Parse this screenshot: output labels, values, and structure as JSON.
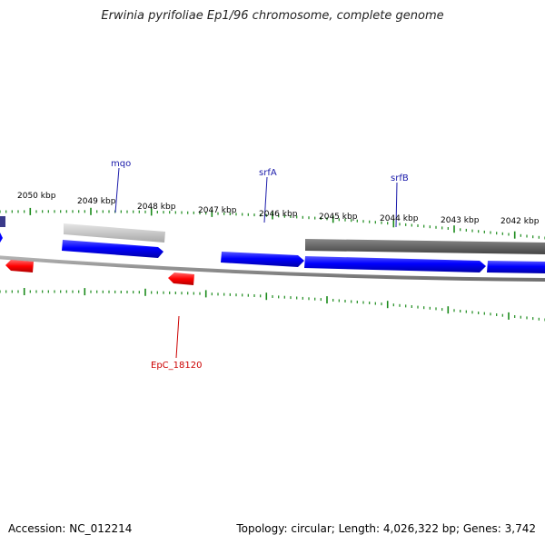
{
  "title": "Erwinia pyrifoliae Ep1/96 chromosome, complete genome",
  "footer": {
    "accession": "Accession: NC_012214",
    "stats": "Topology: circular; Length: 4,026,322 bp; Genes: 3,742"
  },
  "colors": {
    "forward_gene": "#0000ff",
    "reverse_gene": "#ff0000",
    "rna_or_other_forward": "#bbbbbb",
    "rna_or_other_reverse": "#555555",
    "backbone": "#888888",
    "tick": "#1a8a1a",
    "label_forward": "#1a1aaa",
    "label_reverse": "#cc0000"
  },
  "ticks": [
    {
      "label": "2050 kbp"
    },
    {
      "label": "2049 kbp"
    },
    {
      "label": "2048 kbp"
    },
    {
      "label": "2047 kbp"
    },
    {
      "label": "2046 kbp"
    },
    {
      "label": "2045 kbp"
    },
    {
      "label": "2044 kbp"
    },
    {
      "label": "2043 kbp"
    },
    {
      "label": "2042 kbp"
    }
  ],
  "gene_labels": [
    {
      "name": "mqo",
      "strand": "forward"
    },
    {
      "name": "srfA",
      "strand": "forward"
    },
    {
      "name": "srfB",
      "strand": "forward"
    },
    {
      "name": "EpC_18120",
      "strand": "reverse"
    }
  ]
}
